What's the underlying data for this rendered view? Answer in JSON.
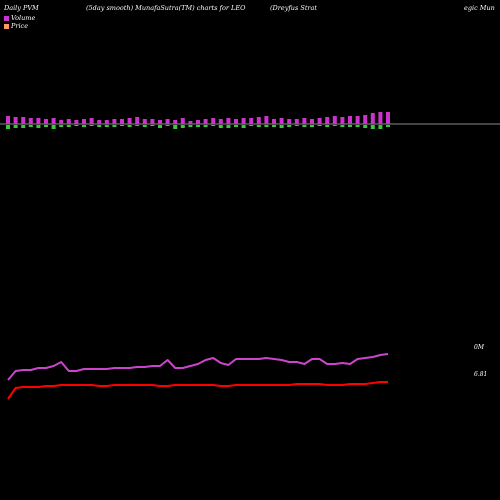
{
  "header": {
    "left": "Daily PVM",
    "center": "(5day smooth) MunafaSutra(TM) charts for LEO",
    "right_part1": "(Dreyfus Strat",
    "right_part2": "egic Mun"
  },
  "legend": [
    {
      "label": "Volume",
      "color": "#cc33cc"
    },
    {
      "label": "Price",
      "color": "#ff9966"
    }
  ],
  "colors": {
    "background": "#000000",
    "volume_up": "#cc33cc",
    "volume_down": "#33cc33",
    "volume_axis": "#888888",
    "volume_line": "#cc44cc",
    "price_line": "#ff0000"
  },
  "chart_data": {
    "type": "line",
    "title": "(5day smooth) MunafaSutra(TM) charts for LEO",
    "axis_labels": {
      "volume": "0M",
      "price": "6.81"
    },
    "volume_bars": {
      "up": [
        8,
        7,
        7,
        6,
        6,
        5,
        6,
        4,
        5,
        4,
        5,
        6,
        4,
        4,
        5,
        5,
        6,
        7,
        5,
        5,
        4,
        5,
        4,
        6,
        3,
        4,
        5,
        6,
        5,
        6,
        5,
        6,
        6,
        7,
        8,
        5,
        6,
        5,
        5,
        6,
        5,
        6,
        7,
        8,
        7,
        8,
        8,
        9,
        11,
        12,
        12
      ],
      "down": [
        4,
        3,
        3,
        2,
        3,
        2,
        4,
        2,
        2,
        1,
        2,
        1,
        2,
        2,
        2,
        1,
        2,
        1,
        2,
        1,
        3,
        1,
        4,
        3,
        2,
        2,
        2,
        1,
        3,
        3,
        2,
        3,
        1,
        2,
        2,
        2,
        3,
        2,
        1,
        2,
        2,
        1,
        2,
        1,
        2,
        2,
        2,
        3,
        4,
        4,
        2
      ]
    },
    "volume_line": [
      -16,
      -7,
      -6,
      -6,
      -4,
      -4,
      -2,
      2,
      -7,
      -7,
      -5,
      -5,
      -5,
      -5,
      -4,
      -4,
      -4,
      -3,
      -3,
      -2,
      -2,
      4,
      -4,
      -4,
      -2,
      0,
      4,
      6,
      1,
      -1,
      5,
      5,
      5,
      5,
      6,
      5,
      4,
      2,
      2,
      0,
      5,
      5,
      0,
      0,
      1,
      0,
      5,
      6,
      7,
      9,
      10
    ],
    "price_line": [
      -15,
      -4,
      -3,
      -3,
      -3,
      -2,
      -2,
      -1,
      -1,
      -1,
      -1,
      -1,
      -2,
      -2,
      -1,
      -1,
      -1,
      -1,
      -1,
      -1,
      -2,
      -2,
      -1,
      -1,
      -1,
      -1,
      -1,
      -1,
      -2,
      -2,
      -1,
      -1,
      -1,
      -1,
      -1,
      -1,
      -1,
      -1,
      0,
      0,
      0,
      0,
      -1,
      -1,
      -1,
      0,
      0,
      0,
      1,
      2,
      2
    ]
  }
}
